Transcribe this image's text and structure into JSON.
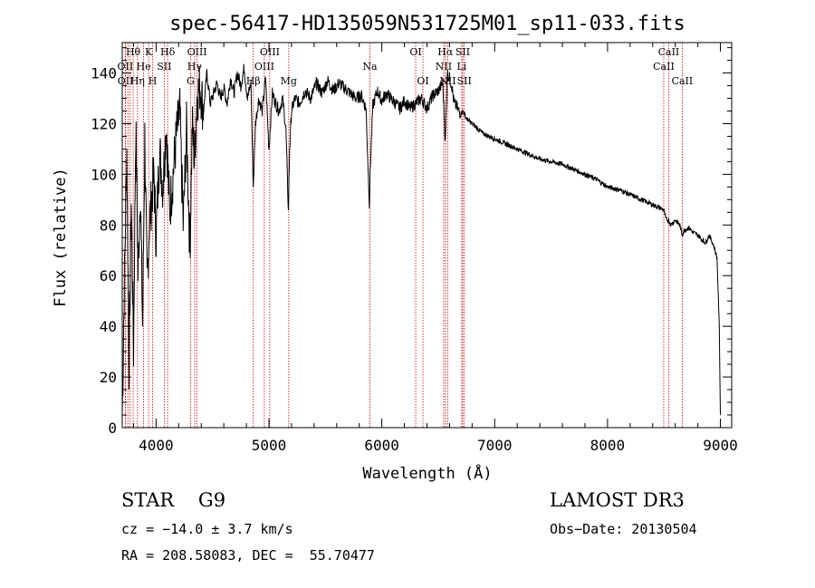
{
  "chart_data": {
    "type": "line",
    "title": "spec-56417-HD135059N531725M01_sp11-033.fits",
    "xlabel": "Wavelength (Å)",
    "ylabel": "Flux (relative)",
    "xlim": [
      3700,
      9100
    ],
    "ylim": [
      0,
      152
    ],
    "xticks": [
      4000,
      5000,
      6000,
      7000,
      8000,
      9000
    ],
    "yticks": [
      0,
      20,
      40,
      60,
      80,
      100,
      120,
      140
    ],
    "grid": false,
    "series": [
      {
        "name": "flux",
        "x": [
          3700,
          3720,
          3740,
          3760,
          3780,
          3800,
          3820,
          3840,
          3860,
          3880,
          3900,
          3920,
          3940,
          3960,
          3980,
          4000,
          4030,
          4060,
          4090,
          4120,
          4150,
          4180,
          4210,
          4240,
          4270,
          4300,
          4320,
          4340,
          4360,
          4390,
          4420,
          4450,
          4480,
          4510,
          4540,
          4570,
          4600,
          4630,
          4660,
          4690,
          4720,
          4750,
          4780,
          4810,
          4840,
          4861,
          4880,
          4910,
          4940,
          4970,
          5000,
          5030,
          5060,
          5090,
          5120,
          5150,
          5172,
          5183,
          5200,
          5230,
          5270,
          5320,
          5370,
          5420,
          5470,
          5520,
          5570,
          5620,
          5670,
          5720,
          5770,
          5820,
          5860,
          5890,
          5896,
          5920,
          5960,
          6000,
          6040,
          6080,
          6120,
          6160,
          6200,
          6250,
          6300,
          6350,
          6400,
          6450,
          6500,
          6540,
          6563,
          6580,
          6600,
          6620,
          6640,
          6660,
          6680,
          6700,
          6720,
          6750,
          6800,
          6850,
          6900,
          6950,
          7000,
          7100,
          7200,
          7300,
          7400,
          7500,
          7600,
          7700,
          7800,
          7900,
          8000,
          8100,
          8200,
          8300,
          8400,
          8498,
          8520,
          8542,
          8560,
          8600,
          8640,
          8662,
          8680,
          8720,
          8760,
          8800,
          8840,
          8870,
          8900,
          8940,
          8970,
          8990,
          9000
        ],
        "y": [
          5,
          60,
          110,
          25,
          90,
          30,
          120,
          60,
          95,
          40,
          115,
          55,
          80,
          90,
          100,
          75,
          110,
          95,
          120,
          85,
          100,
          115,
          125,
          80,
          118,
          70,
          120,
          105,
          130,
          135,
          125,
          140,
          128,
          132,
          136,
          130,
          134,
          128,
          138,
          132,
          140,
          135,
          142,
          130,
          136,
          95,
          120,
          130,
          125,
          138,
          110,
          132,
          128,
          125,
          130,
          118,
          85,
          110,
          125,
          130,
          128,
          133,
          130,
          136,
          132,
          137,
          133,
          136,
          134,
          132,
          130,
          131,
          126,
          88,
          100,
          127,
          133,
          129,
          132,
          130,
          128,
          126,
          129,
          126,
          128,
          130,
          126,
          131,
          133,
          136,
          112,
          140,
          138,
          135,
          128,
          127,
          125,
          124,
          125,
          122,
          120,
          118,
          116,
          115,
          114,
          112,
          110,
          108,
          106,
          105,
          104,
          102,
          100,
          98,
          95,
          94,
          92,
          90,
          88,
          86,
          82,
          82,
          80,
          82,
          80,
          76,
          78,
          79,
          77,
          76,
          74,
          73,
          76,
          72,
          67,
          40,
          5
        ]
      }
    ],
    "line_labels": [
      {
        "text": "Hθ",
        "wavelength": 3797,
        "row": 0
      },
      {
        "text": "OII",
        "wavelength": 3727,
        "row": 1
      },
      {
        "text": "OII",
        "wavelength": 3729,
        "row": 2
      },
      {
        "text": "Hη",
        "wavelength": 3835,
        "row": 2
      },
      {
        "text": "He",
        "wavelength": 3889,
        "row": 1
      },
      {
        "text": "K",
        "wavelength": 3934,
        "row": 0
      },
      {
        "text": "H",
        "wavelength": 3969,
        "row": 2
      },
      {
        "text": "Hδ",
        "wavelength": 4102,
        "row": 0
      },
      {
        "text": "SII",
        "wavelength": 4072,
        "row": 1
      },
      {
        "text": "OIII",
        "wavelength": 4363,
        "row": 0
      },
      {
        "text": "Hγ",
        "wavelength": 4341,
        "row": 1
      },
      {
        "text": "G",
        "wavelength": 4305,
        "row": 2
      },
      {
        "text": "Hβ",
        "wavelength": 4861,
        "row": 2
      },
      {
        "text": "OIII",
        "wavelength": 5007,
        "row": 0
      },
      {
        "text": "OIII",
        "wavelength": 4959,
        "row": 1
      },
      {
        "text": "Mg",
        "wavelength": 5175,
        "row": 2
      },
      {
        "text": "Na",
        "wavelength": 5894,
        "row": 1
      },
      {
        "text": "OI",
        "wavelength": 6300,
        "row": 0
      },
      {
        "text": "OI",
        "wavelength": 6364,
        "row": 2
      },
      {
        "text": "Hα",
        "wavelength": 6563,
        "row": 0
      },
      {
        "text": "NII",
        "wavelength": 6548,
        "row": 1
      },
      {
        "text": "NII",
        "wavelength": 6584,
        "row": 2
      },
      {
        "text": "SII",
        "wavelength": 6717,
        "row": 0
      },
      {
        "text": "Li",
        "wavelength": 6708,
        "row": 1
      },
      {
        "text": "SII",
        "wavelength": 6731,
        "row": 2
      },
      {
        "text": "CaII",
        "wavelength": 8542,
        "row": 0
      },
      {
        "text": "CaII",
        "wavelength": 8498,
        "row": 1
      },
      {
        "text": "CaII",
        "wavelength": 8662,
        "row": 2
      }
    ],
    "marker_lines": [
      3727,
      3729,
      3750,
      3770,
      3797,
      3835,
      3889,
      3934,
      3969,
      4072,
      4102,
      4305,
      4341,
      4363,
      4861,
      4959,
      5007,
      5175,
      5894,
      6300,
      6364,
      6548,
      6563,
      6584,
      6708,
      6717,
      6731,
      8498,
      8542,
      8662
    ]
  },
  "info": {
    "class_line": "STAR    G9",
    "survey": "LAMOST DR3",
    "cz": "cz = −14.0 ± 3.7 km/s",
    "obs_date": "Obs−Date: 20130504",
    "coords": "RA = 208.58083, DEC =  55.70477"
  }
}
